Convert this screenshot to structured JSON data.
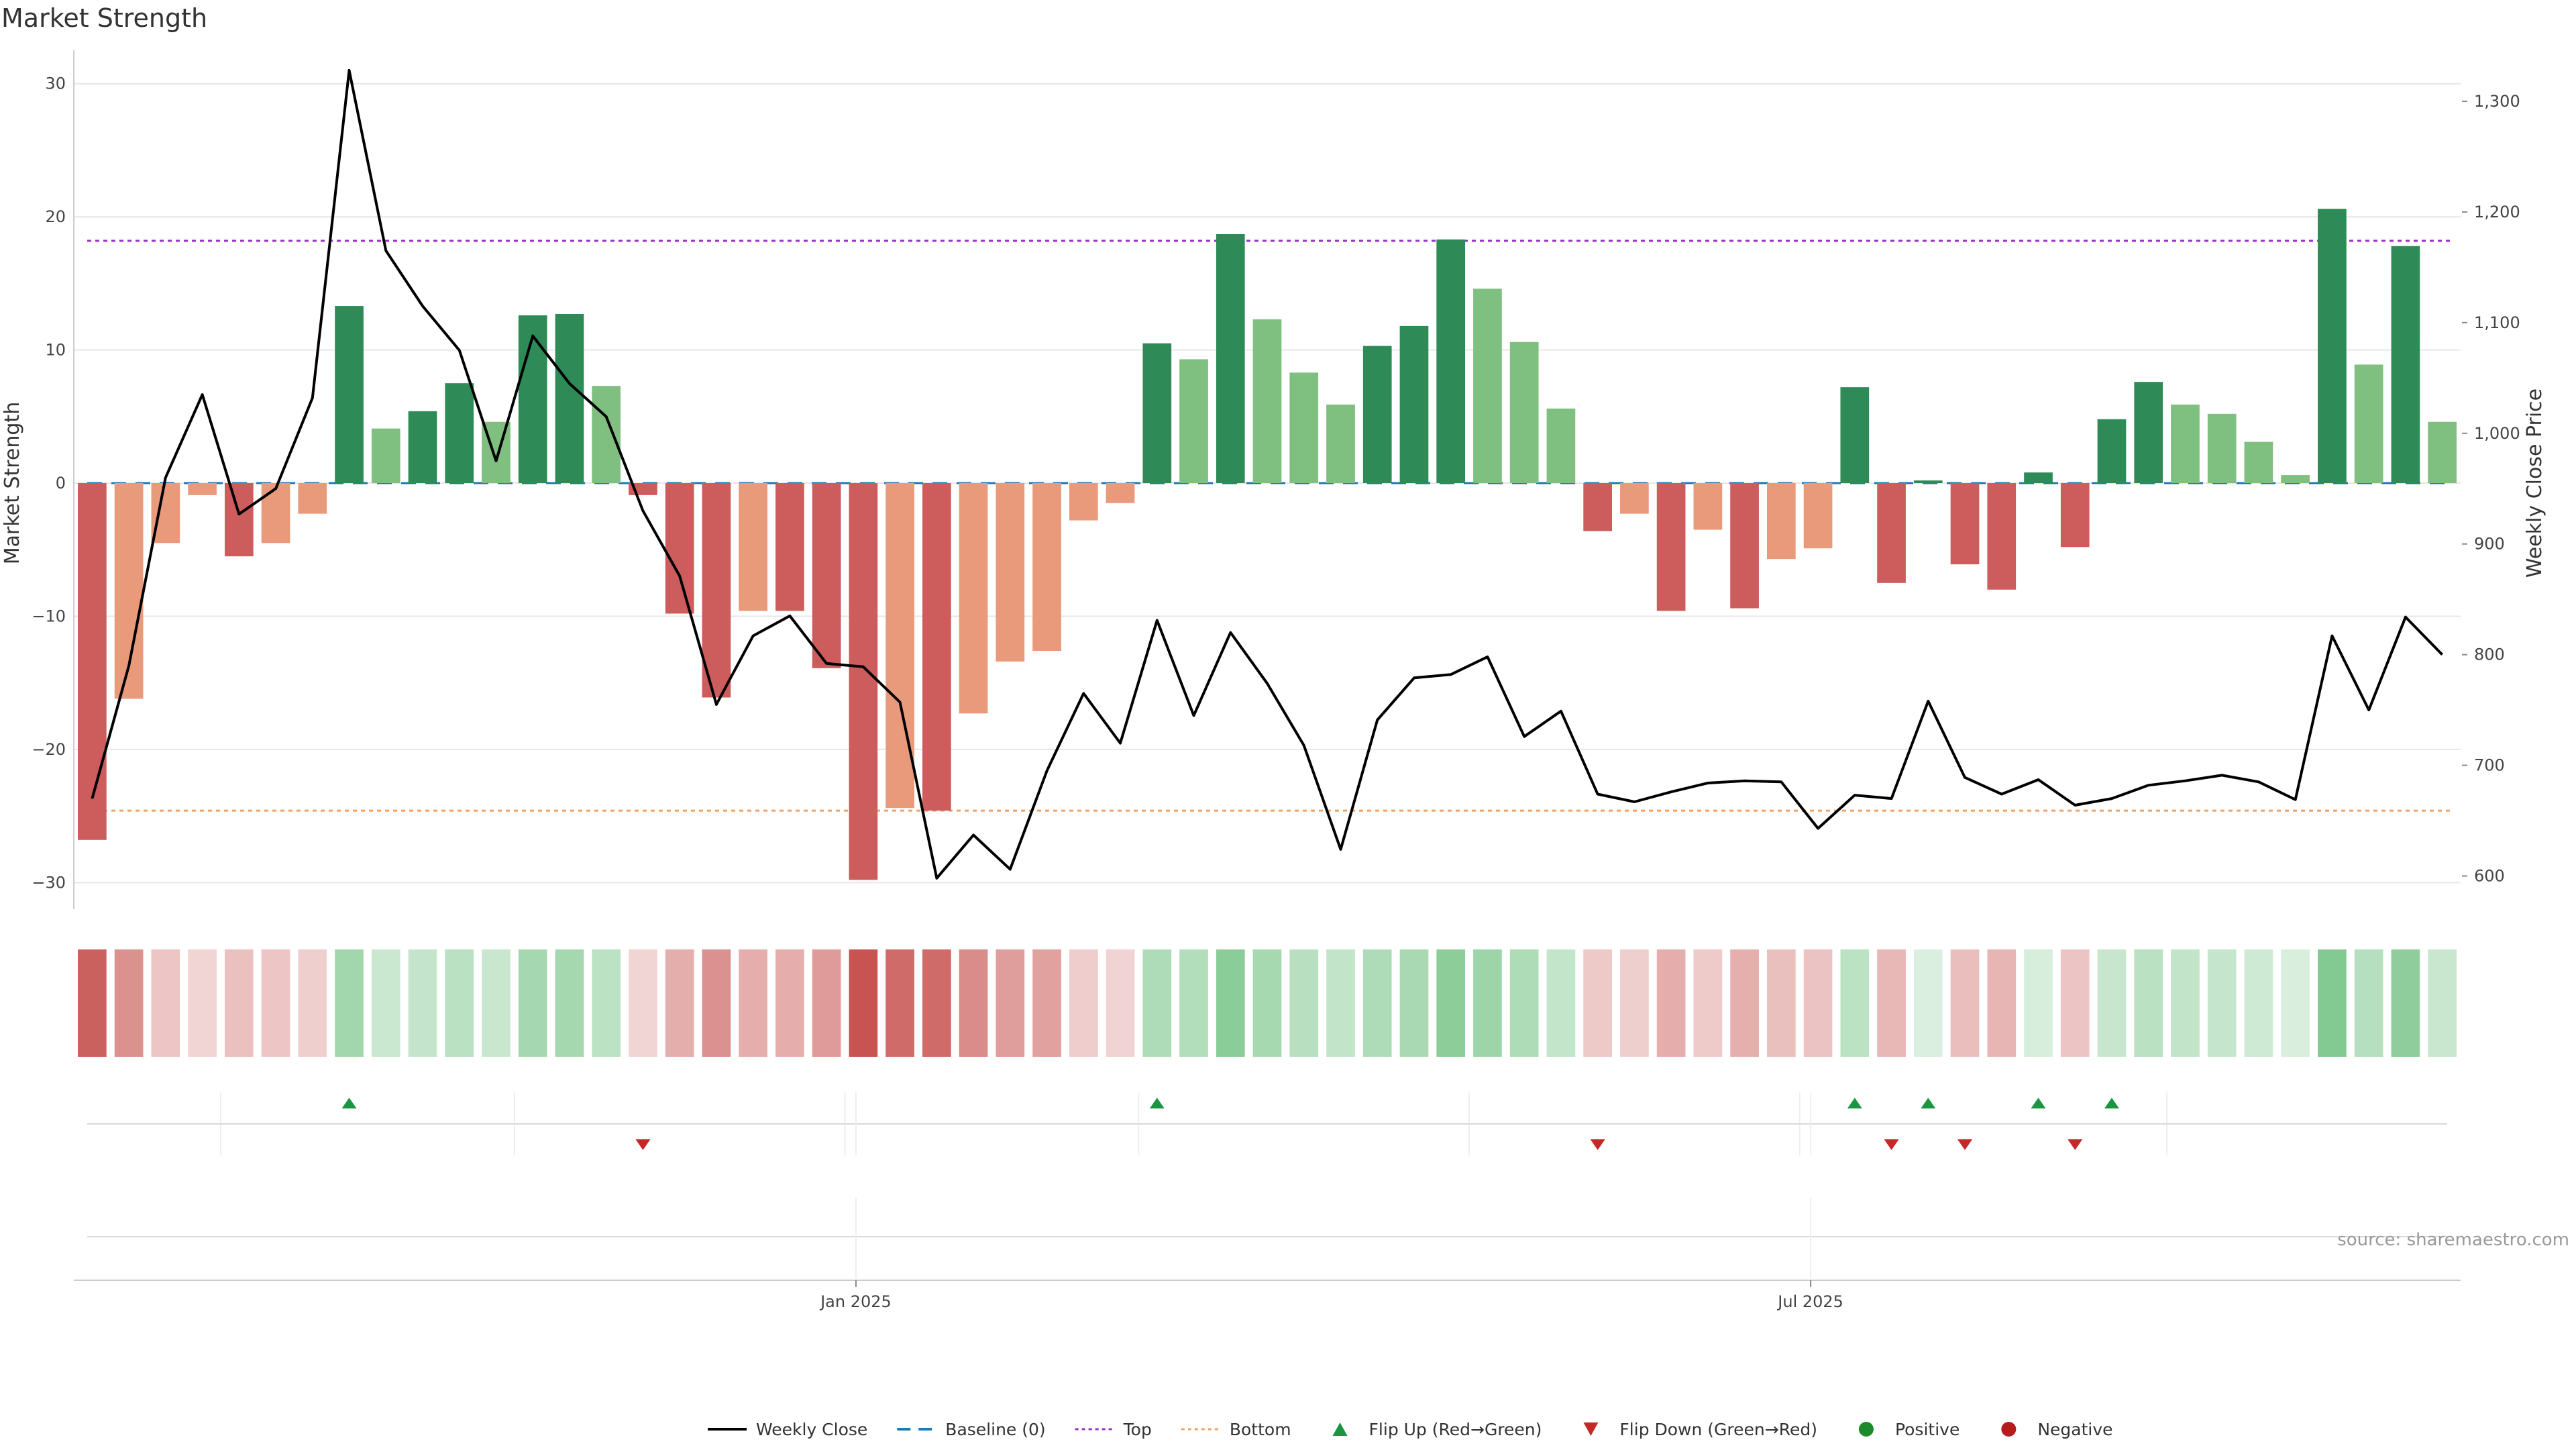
{
  "chart_data": {
    "type": "bar",
    "title": "Market Strength",
    "ylabel": "Market Strength",
    "y2label": "Weekly Close Price",
    "ylim": [
      -32,
      32
    ],
    "y2lim": [
      570,
      1340
    ],
    "yticks": [
      30,
      20,
      10,
      0,
      -10,
      -20,
      -30
    ],
    "ytick_labels": [
      "30",
      "20",
      "10",
      "0",
      "−10",
      "−20",
      "−30"
    ],
    "y2ticks": [
      1300,
      1200,
      1100,
      1000,
      900,
      800,
      700,
      600
    ],
    "y2tick_labels": [
      "1,300",
      "1,200",
      "1,100",
      "1,000",
      "900",
      "800",
      "700",
      "600"
    ],
    "x_tick_labels": [
      {
        "label": "Jan 2025",
        "index": 21
      },
      {
        "label": "Jul 2025",
        "index": 47
      }
    ],
    "top_level": 18.2,
    "bottom_level": -24.6,
    "strength_values": [
      -26.8,
      -16.2,
      -4.5,
      -0.9,
      -5.5,
      -4.5,
      -2.3,
      13.3,
      4.1,
      5.4,
      7.5,
      4.6,
      12.6,
      12.7,
      7.3,
      -0.9,
      -9.8,
      -16.1,
      -9.6,
      -9.6,
      -13.9,
      -29.8,
      -24.4,
      -24.6,
      -17.3,
      -13.4,
      -12.6,
      -2.8,
      -1.5,
      10.5,
      9.3,
      18.7,
      12.3,
      8.3,
      5.9,
      10.3,
      11.8,
      18.3,
      14.6,
      10.6,
      5.6,
      -3.6,
      -2.3,
      -9.6,
      -3.5,
      -9.4,
      -5.7,
      -4.9,
      7.2,
      -7.5,
      0.2,
      -6.1,
      -8.0,
      0.8,
      -4.8,
      4.8,
      7.6,
      5.9,
      5.2,
      3.1,
      0.6,
      20.6,
      8.9,
      17.8,
      4.6
    ],
    "weekly_close": [
      670,
      790,
      960,
      1035,
      927,
      950,
      1032,
      1328,
      1165,
      1115,
      1075,
      975,
      1088,
      1045,
      1015,
      930,
      871,
      755,
      817,
      835,
      792,
      789,
      757,
      598,
      637,
      606,
      695,
      765,
      720,
      831,
      745,
      820,
      774,
      718,
      624,
      741,
      779,
      782,
      798,
      726,
      749,
      674,
      667,
      676,
      684,
      686,
      685,
      643,
      673,
      670,
      758,
      689,
      674,
      687,
      664,
      670,
      682,
      686,
      691,
      685,
      669,
      817,
      750,
      834,
      800
    ],
    "strength_cells": [
      "negative",
      "negative",
      "negative",
      "negative",
      "negative",
      "negative",
      "negative",
      "positive",
      "positive",
      "positive",
      "positive",
      "positive",
      "positive",
      "positive",
      "positive",
      "negative",
      "negative",
      "negative",
      "negative",
      "negative",
      "negative",
      "negative",
      "negative",
      "negative",
      "negative",
      "negative",
      "negative",
      "negative",
      "negative",
      "positive",
      "positive",
      "positive",
      "positive",
      "positive",
      "positive",
      "positive",
      "positive",
      "positive",
      "positive",
      "positive",
      "positive",
      "negative",
      "negative",
      "negative",
      "negative",
      "negative",
      "negative",
      "negative",
      "positive",
      "negative",
      "positive",
      "negative",
      "negative",
      "positive",
      "negative",
      "positive",
      "positive",
      "positive",
      "positive",
      "positive",
      "positive",
      "positive",
      "positive",
      "positive",
      "positive"
    ],
    "flip_up_indices": [
      7,
      29,
      48,
      50,
      53,
      55
    ],
    "flip_down_indices": [
      15,
      41,
      49,
      51,
      54
    ],
    "legend": [
      {
        "label": "Weekly Close",
        "symbol": "line",
        "color": "#000000"
      },
      {
        "label": "Baseline (0)",
        "symbol": "dashed",
        "color": "#1f77b4"
      },
      {
        "label": "Top",
        "symbol": "dotted",
        "color": "#9b30c8"
      },
      {
        "label": "Bottom",
        "symbol": "dotted",
        "color": "#f4a261"
      },
      {
        "label": "Flip Up (Red→Green)",
        "symbol": "triangle-up",
        "color": "#1a9641"
      },
      {
        "label": "Flip Down (Green→Red)",
        "symbol": "triangle-down",
        "color": "#c62828"
      },
      {
        "label": "Positive",
        "symbol": "dot",
        "color": "#1a8a2a"
      },
      {
        "label": "Negative",
        "symbol": "dot",
        "color": "#b71c1c"
      }
    ],
    "legend_position": "bottom-center",
    "colors": {
      "strong_positive": "#2e8b57",
      "weak_positive": "#7fbf7f",
      "strong_negative": "#cd5c5c",
      "weak_negative": "#e99a7a",
      "top_line": "#9b30c8",
      "bottom_line": "#f4a261",
      "baseline": "#1f77b4",
      "price_line": "#000000",
      "flip_up": "#1a9641",
      "flip_down": "#c62828"
    },
    "source": "source: sharemaestro.com"
  }
}
